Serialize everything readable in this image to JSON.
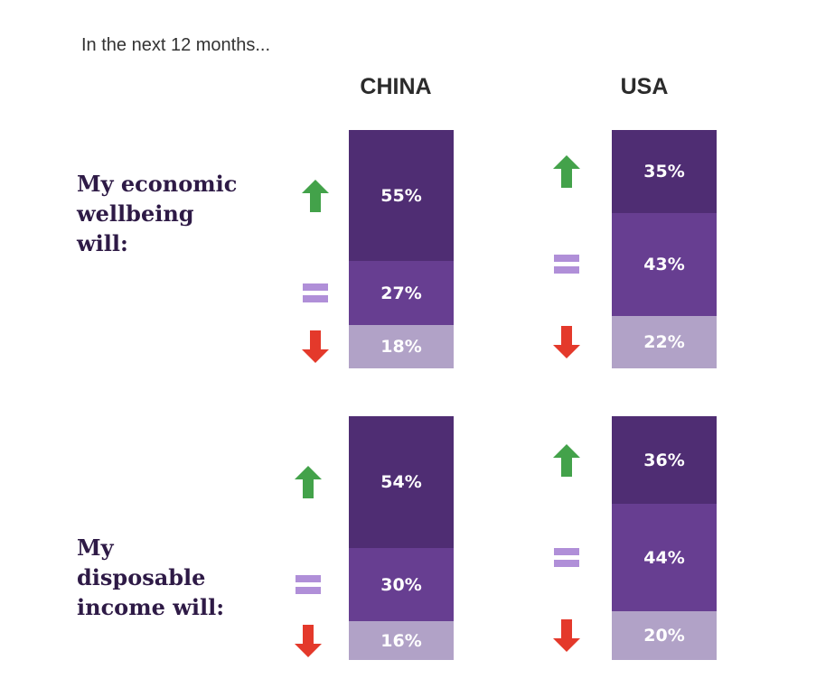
{
  "intro": "In the next 12 months...",
  "columns": [
    "CHINA",
    "USA"
  ],
  "rows": [
    {
      "label_lines": [
        "My economic",
        "wellbeing",
        "will:"
      ]
    },
    {
      "label_lines": [
        "My",
        "disposable",
        "income will:"
      ]
    }
  ],
  "colors": {
    "up": "#2e1e5e",
    "up_fill": "#4f2d73",
    "same_fill": "#673e91",
    "down_fill": "#b1a2c7",
    "arrow_up": "#43a24a",
    "arrow_down": "#e4392b",
    "equals": "#b08fd8"
  },
  "icons": {
    "up": "up-arrow-icon",
    "same": "equals-icon",
    "down": "down-arrow-icon"
  },
  "chart_data": [
    {
      "type": "bar",
      "title": "CHINA",
      "row": "My economic wellbeing will:",
      "categories": [
        "up",
        "same",
        "down"
      ],
      "values": [
        55,
        27,
        18
      ],
      "labels": [
        "55%",
        "27%",
        "18%"
      ]
    },
    {
      "type": "bar",
      "title": "USA",
      "row": "My economic wellbeing will:",
      "categories": [
        "up",
        "same",
        "down"
      ],
      "values": [
        35,
        43,
        22
      ],
      "labels": [
        "35%",
        "43%",
        "22%"
      ]
    },
    {
      "type": "bar",
      "title": "CHINA",
      "row": "My disposable income will:",
      "categories": [
        "up",
        "same",
        "down"
      ],
      "values": [
        54,
        30,
        16
      ],
      "labels": [
        "54%",
        "30%",
        "16%"
      ]
    },
    {
      "type": "bar",
      "title": "USA",
      "row": "My disposable income will:",
      "categories": [
        "up",
        "same",
        "down"
      ],
      "values": [
        36,
        44,
        20
      ],
      "labels": [
        "36%",
        "44%",
        "20%"
      ]
    }
  ]
}
